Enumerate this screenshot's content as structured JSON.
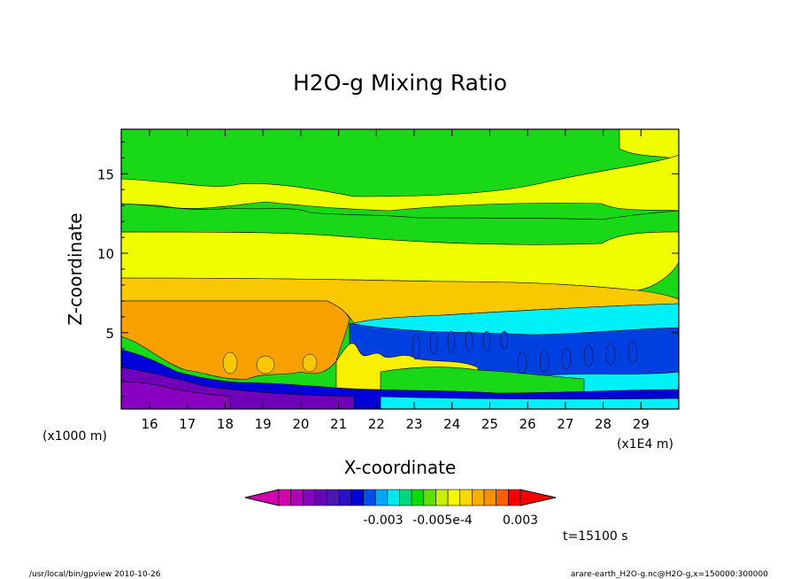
{
  "chart_data": {
    "type": "heatmap",
    "title": "H2O-g Mixing Ratio",
    "xlabel": "X-coordinate",
    "ylabel": "Z-coordinate",
    "x_unit_left": "(x1000 m)",
    "x_unit_right": "(x1E4 m)",
    "x_ticks": [
      "16",
      "17",
      "18",
      "19",
      "20",
      "21",
      "22",
      "23",
      "24",
      "25",
      "26",
      "27",
      "28",
      "29"
    ],
    "y_ticks": [
      "5",
      "10",
      "15"
    ],
    "xlim": [
      15.25,
      30.0
    ],
    "ylim": [
      0.2,
      17.8
    ],
    "grid": false,
    "colorbar": {
      "colors": [
        "#d400b0",
        "#b000b8",
        "#8a00c0",
        "#6a00b8",
        "#4a18b0",
        "#2a10c8",
        "#0000d8",
        "#0050f0",
        "#00a8f8",
        "#00e8f0",
        "#00d880",
        "#00e000",
        "#60e000",
        "#c8f000",
        "#f8f800",
        "#f8d800",
        "#f8b000",
        "#f89000",
        "#f86000",
        "#f80000"
      ],
      "labels": [
        "-0.003",
        "-0.005e-4",
        "0.003"
      ]
    },
    "regions": [
      {
        "level": "green",
        "color": "#18d818"
      },
      {
        "level": "yellow",
        "color": "#f0ff00"
      },
      {
        "level": "light-yellow",
        "color": "#f8f000"
      },
      {
        "level": "orange-yellow",
        "color": "#f8c800"
      },
      {
        "level": "orange",
        "color": "#f8a000"
      },
      {
        "level": "cyan",
        "color": "#00f0f8"
      },
      {
        "level": "blue",
        "color": "#0040e0"
      },
      {
        "level": "purple",
        "color": "#7000b8"
      }
    ]
  },
  "annotations": {
    "time": "t=15100 s",
    "footer_left": "/usr/local/bin/gpview  2010-10-26",
    "footer_right": "arare-earth_H2O-g.nc@H2O-g,x=150000:300000"
  }
}
